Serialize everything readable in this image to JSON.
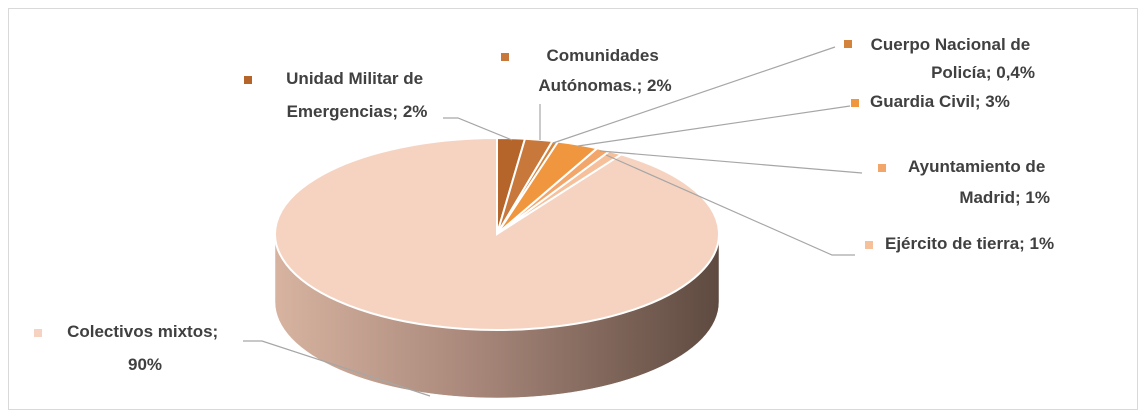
{
  "chart_data": {
    "type": "pie3d",
    "categories": [
      "Unidad Militar de Emergencias",
      "Comunidades Autónomas.",
      "Cuerpo Nacional de Policía",
      "Guardia Civil",
      "Ayuntamiento de Madrid",
      "Ejército de tierra",
      "Colectivos mixtos"
    ],
    "values": [
      2,
      2,
      0.4,
      3,
      1,
      1,
      90
    ],
    "value_labels": [
      "Unidad Militar de Emergencias; 2%",
      "Comunidades Autónomas.; 2%",
      "Cuerpo Nacional de Policía; 0,4%",
      "Guardia Civil; 3%",
      "Ayuntamiento de Madrid; 1%",
      "Ejército de tierra; 1%",
      "Colectivos mixtos; 90%"
    ],
    "colors": [
      "#b5652a",
      "#c8783a",
      "#d4833a",
      "#f0963e",
      "#f2a66a",
      "#f5c09a",
      "#f5d3c0"
    ]
  }
}
